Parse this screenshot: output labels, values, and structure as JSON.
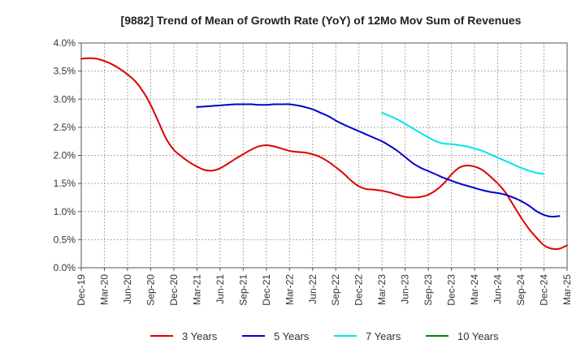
{
  "chart_data": {
    "type": "line",
    "title": "[9882]  Trend of Mean of Growth Rate (YoY) of 12Mo Mov Sum of Revenues",
    "xlabel": "",
    "ylabel": "",
    "ylim": [
      0,
      4.0
    ],
    "yticks": [
      "0.0%",
      "0.5%",
      "1.0%",
      "1.5%",
      "2.0%",
      "2.5%",
      "3.0%",
      "3.5%",
      "4.0%"
    ],
    "xticks": [
      "Dec-19",
      "Mar-20",
      "Jun-20",
      "Sep-20",
      "Dec-20",
      "Mar-21",
      "Jun-21",
      "Sep-21",
      "Dec-21",
      "Mar-22",
      "Jun-22",
      "Sep-22",
      "Dec-22",
      "Mar-23",
      "Jun-23",
      "Sep-23",
      "Dec-23",
      "Mar-24",
      "Jun-24",
      "Sep-24",
      "Dec-24",
      "Mar-25"
    ],
    "grid": true,
    "legend_position": "bottom",
    "series": [
      {
        "name": "3 Years",
        "color": "#dd0000",
        "start_month": 0,
        "values": [
          3.72,
          3.73,
          3.72,
          3.68,
          3.62,
          3.54,
          3.44,
          3.32,
          3.14,
          2.9,
          2.6,
          2.3,
          2.1,
          1.98,
          1.88,
          1.8,
          1.74,
          1.73,
          1.77,
          1.85,
          1.94,
          2.02,
          2.1,
          2.16,
          2.18,
          2.16,
          2.12,
          2.08,
          2.06,
          2.05,
          2.02,
          1.97,
          1.89,
          1.79,
          1.68,
          1.55,
          1.45,
          1.4,
          1.39,
          1.37,
          1.34,
          1.3,
          1.26,
          1.25,
          1.26,
          1.3,
          1.38,
          1.5,
          1.66,
          1.78,
          1.82,
          1.8,
          1.74,
          1.63,
          1.5,
          1.34,
          1.12,
          0.9,
          0.7,
          0.54,
          0.4,
          0.34,
          0.34,
          0.4
        ]
      },
      {
        "name": "5 Years",
        "color": "#0000cc",
        "start_month": 15,
        "values": [
          2.86,
          2.87,
          2.88,
          2.89,
          2.9,
          2.91,
          2.91,
          2.91,
          2.9,
          2.9,
          2.91,
          2.91,
          2.91,
          2.89,
          2.86,
          2.82,
          2.76,
          2.7,
          2.62,
          2.55,
          2.49,
          2.43,
          2.37,
          2.31,
          2.25,
          2.17,
          2.08,
          1.97,
          1.86,
          1.78,
          1.72,
          1.66,
          1.6,
          1.55,
          1.5,
          1.46,
          1.42,
          1.38,
          1.35,
          1.33,
          1.3,
          1.25,
          1.19,
          1.11,
          1.01,
          0.94,
          0.91,
          0.92
        ]
      },
      {
        "name": "7 Years",
        "color": "#00e5ee",
        "start_month": 39,
        "values": [
          2.76,
          2.7,
          2.64,
          2.56,
          2.48,
          2.4,
          2.32,
          2.25,
          2.21,
          2.2,
          2.18,
          2.16,
          2.12,
          2.08,
          2.02,
          1.96,
          1.9,
          1.84,
          1.78,
          1.73,
          1.69,
          1.67
        ]
      },
      {
        "name": "10 Years",
        "color": "#008800",
        "start_month": 0,
        "values": []
      }
    ]
  }
}
